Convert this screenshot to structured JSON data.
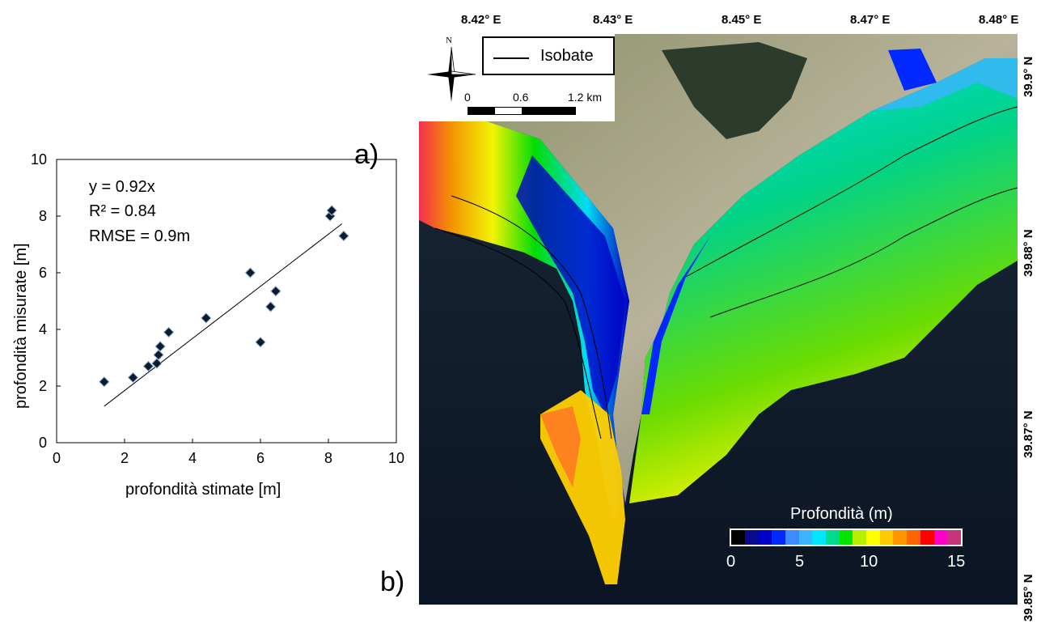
{
  "panel_a_label": "a)",
  "panel_b_label": "b)",
  "chart_data": {
    "type": "scatter",
    "xlabel": "profondità stimate [m]",
    "ylabel": "profondità misurate [m]",
    "xlim": [
      0,
      10
    ],
    "ylim": [
      0,
      10
    ],
    "xticks": [
      "0",
      "2",
      "4",
      "6",
      "8",
      "10"
    ],
    "yticks": [
      "0",
      "2",
      "4",
      "6",
      "8",
      "10"
    ],
    "grid": false,
    "annotations": [
      "y = 0.92x",
      "R² = 0.84",
      "RMSE = 0.9m"
    ],
    "marker_color": "#0d1b2a",
    "points": [
      {
        "x": 1.4,
        "y": 2.15
      },
      {
        "x": 2.25,
        "y": 2.3
      },
      {
        "x": 2.7,
        "y": 2.7
      },
      {
        "x": 2.95,
        "y": 2.8
      },
      {
        "x": 3.0,
        "y": 3.1
      },
      {
        "x": 3.05,
        "y": 3.4
      },
      {
        "x": 3.3,
        "y": 3.9
      },
      {
        "x": 4.4,
        "y": 4.4
      },
      {
        "x": 5.7,
        "y": 6.0
      },
      {
        "x": 6.0,
        "y": 3.55
      },
      {
        "x": 6.3,
        "y": 4.8
      },
      {
        "x": 6.45,
        "y": 5.35
      },
      {
        "x": 8.05,
        "y": 8.0
      },
      {
        "x": 8.1,
        "y": 8.2
      },
      {
        "x": 8.45,
        "y": 7.3
      }
    ],
    "trendline": {
      "x_start": 1.4,
      "x_end": 8.4,
      "slope": 0.92
    }
  },
  "map": {
    "lon_labels": [
      "8.42° E",
      "8.43° E",
      "8.45° E",
      "8.47° E",
      "8.48° E"
    ],
    "lat_labels": [
      "39.9° N",
      "39.88° N",
      "39.87° N",
      "39.85° N"
    ],
    "north_label": "N",
    "legend_line_label": "Isobate",
    "scale_labels": [
      "0",
      "0.6",
      "1.2 km"
    ],
    "colorbar": {
      "title": "Profondità (m)",
      "tick_labels": [
        "0",
        "5",
        "10",
        "15"
      ],
      "colors": [
        "#000000",
        "#0a0a8c",
        "#0000c8",
        "#0028ff",
        "#3c8cff",
        "#3cb4ff",
        "#00e6ff",
        "#00dc8c",
        "#00e600",
        "#b4f000",
        "#ffff00",
        "#ffc800",
        "#ff9600",
        "#ff6400",
        "#ff0000",
        "#ff00c8",
        "#c83278"
      ]
    }
  }
}
